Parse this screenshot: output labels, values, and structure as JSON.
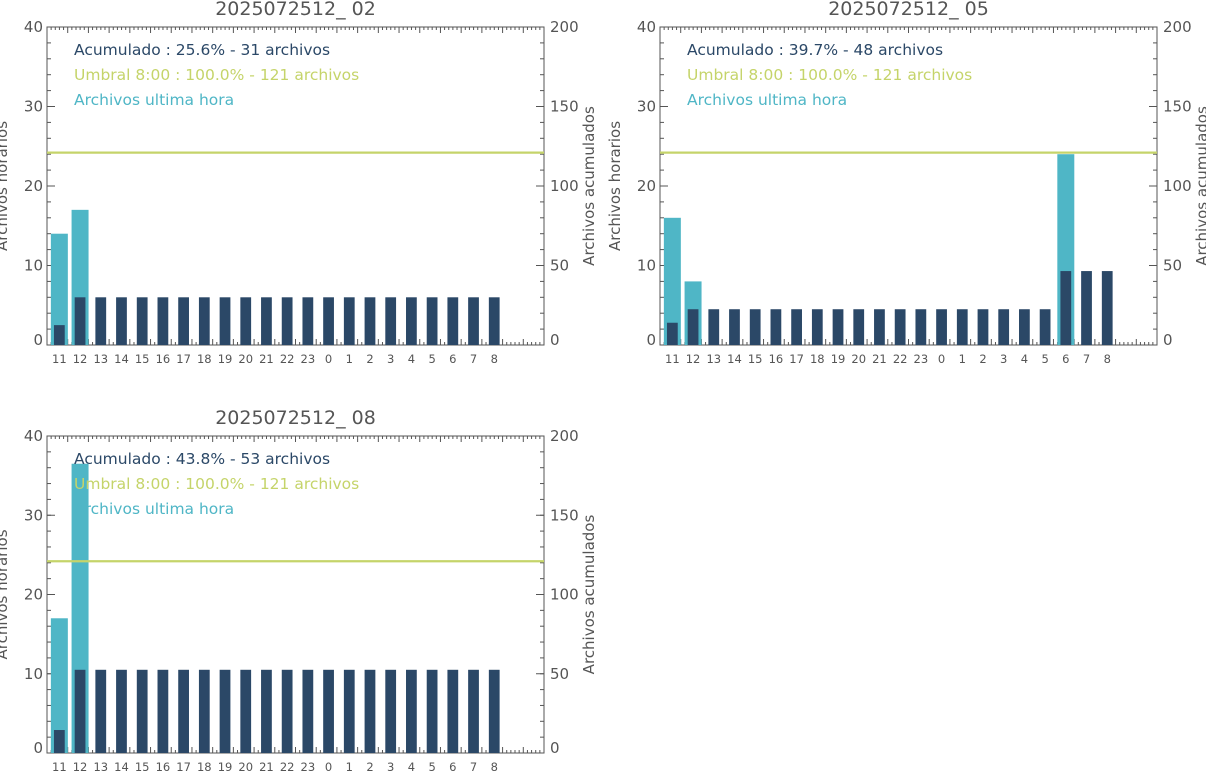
{
  "colors": {
    "hourly": "#4fb6c6",
    "cumulative": "#2b4867",
    "threshold": "#c5d46a",
    "axis": "#555555"
  },
  "chart_data": [
    {
      "type": "bar",
      "title": "2025072512_ 02",
      "ylabel": "Archivos horarios",
      "y2label": "Archivos acumulados",
      "ylim": [
        0,
        40
      ],
      "y2lim": [
        0,
        200
      ],
      "yticks": [
        "0",
        "10",
        "20",
        "30",
        "40"
      ],
      "y2ticks": [
        "0",
        "50",
        "100",
        "150",
        "200"
      ],
      "categories": [
        "11",
        "12",
        "13",
        "14",
        "15",
        "16",
        "17",
        "18",
        "19",
        "20",
        "21",
        "22",
        "23",
        "0",
        "1",
        "2",
        "3",
        "4",
        "5",
        "6",
        "7",
        "8"
      ],
      "legend": [
        "Acumulado : 25.6% - 31 archivos",
        "Umbral 8:00 : 100.0% - 121 archivos",
        "Archivos ultima hora"
      ],
      "threshold": 121,
      "series": [
        {
          "name": "Archivos ultima hora",
          "axis": "left",
          "values": [
            14,
            17,
            null,
            null,
            null,
            null,
            null,
            null,
            null,
            null,
            null,
            null,
            null,
            null,
            null,
            null,
            null,
            null,
            null,
            null,
            null,
            null
          ]
        },
        {
          "name": "Acumulado",
          "axis": "right",
          "values": [
            12.5,
            30,
            30,
            30,
            30,
            30,
            30,
            30,
            30,
            30,
            30,
            30,
            30,
            30,
            30,
            30,
            30,
            30,
            30,
            30,
            30,
            30
          ]
        }
      ]
    },
    {
      "type": "bar",
      "title": "2025072512_ 05",
      "ylabel": "Archivos horarios",
      "y2label": "Archivos acumulados",
      "ylim": [
        0,
        40
      ],
      "y2lim": [
        0,
        200
      ],
      "yticks": [
        "0",
        "10",
        "20",
        "30",
        "40"
      ],
      "y2ticks": [
        "0",
        "50",
        "100",
        "150",
        "200"
      ],
      "categories": [
        "11",
        "12",
        "13",
        "14",
        "15",
        "16",
        "17",
        "18",
        "19",
        "20",
        "21",
        "22",
        "23",
        "0",
        "1",
        "2",
        "3",
        "4",
        "5",
        "6",
        "7",
        "8"
      ],
      "legend": [
        "Acumulado : 39.7% - 48 archivos",
        "Umbral 8:00 : 100.0% - 121 archivos",
        "Archivos ultima hora"
      ],
      "threshold": 121,
      "series": [
        {
          "name": "Archivos ultima hora",
          "axis": "left",
          "values": [
            16,
            8,
            null,
            null,
            null,
            null,
            null,
            null,
            null,
            null,
            null,
            null,
            null,
            null,
            null,
            null,
            null,
            null,
            null,
            24,
            null,
            null
          ]
        },
        {
          "name": "Acumulado",
          "axis": "right",
          "values": [
            14,
            22.5,
            22.5,
            22.5,
            22.5,
            22.5,
            22.5,
            22.5,
            22.5,
            22.5,
            22.5,
            22.5,
            22.5,
            22.5,
            22.5,
            22.5,
            22.5,
            22.5,
            22.5,
            46.5,
            46.5,
            46.5
          ]
        }
      ]
    },
    {
      "type": "bar",
      "title": "2025072512_ 08",
      "ylabel": "Archivos horarios",
      "y2label": "Archivos acumulados",
      "ylim": [
        0,
        40
      ],
      "y2lim": [
        0,
        200
      ],
      "yticks": [
        "0",
        "10",
        "20",
        "30",
        "40"
      ],
      "y2ticks": [
        "0",
        "50",
        "100",
        "150",
        "200"
      ],
      "categories": [
        "11",
        "12",
        "13",
        "14",
        "15",
        "16",
        "17",
        "18",
        "19",
        "20",
        "21",
        "22",
        "23",
        "0",
        "1",
        "2",
        "3",
        "4",
        "5",
        "6",
        "7",
        "8"
      ],
      "legend": [
        "Acumulado : 43.8% - 53 archivos",
        "Umbral 8:00 : 100.0% - 121 archivos",
        "Archivos ultima hora"
      ],
      "threshold": 121,
      "series": [
        {
          "name": "Archivos ultima hora",
          "axis": "left",
          "values": [
            17,
            36.5,
            null,
            null,
            null,
            null,
            null,
            null,
            null,
            null,
            null,
            null,
            null,
            null,
            null,
            null,
            null,
            null,
            null,
            null,
            null,
            null
          ]
        },
        {
          "name": "Acumulado",
          "axis": "right",
          "values": [
            14.5,
            52.5,
            52.5,
            52.5,
            52.5,
            52.5,
            52.5,
            52.5,
            52.5,
            52.5,
            52.5,
            52.5,
            52.5,
            52.5,
            52.5,
            52.5,
            52.5,
            52.5,
            52.5,
            52.5,
            52.5,
            52.5
          ]
        }
      ]
    }
  ]
}
